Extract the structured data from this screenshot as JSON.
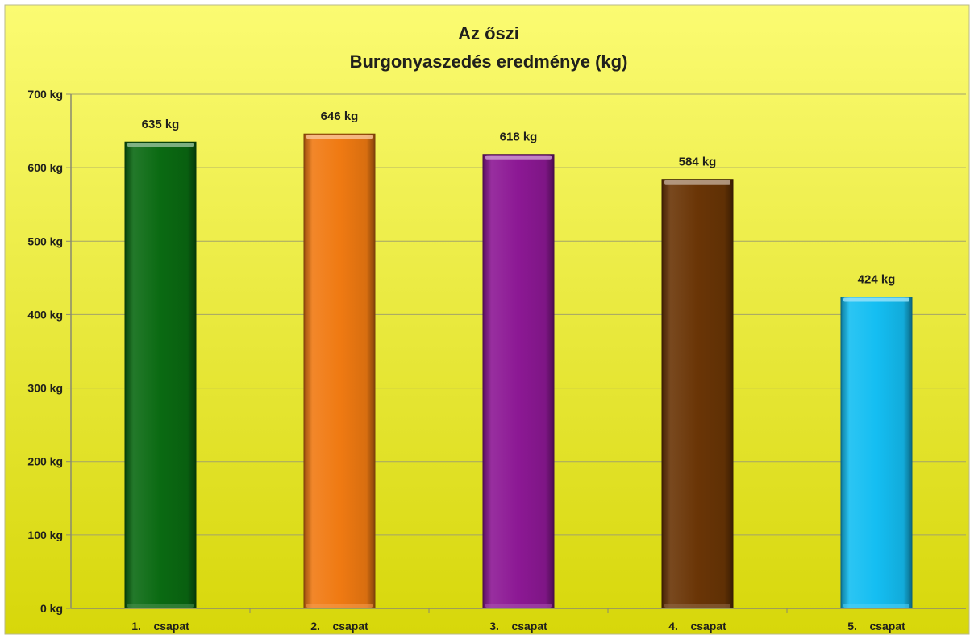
{
  "chart_data": {
    "type": "bar",
    "title_line1": "Az őszi",
    "title_line2": "Burgonyaszedés eredménye (kg)",
    "categories": [
      "1.    csapat",
      "2.    csapat",
      "3.    csapat",
      "4.    csapat",
      "5.    csapat"
    ],
    "values": [
      635,
      646,
      618,
      584,
      424
    ],
    "data_labels": [
      "635 kg",
      "646 kg",
      "618 kg",
      "584 kg",
      "424 kg"
    ],
    "y_ticks": [
      "0 kg",
      "100 kg",
      "200 kg",
      "300 kg",
      "400 kg",
      "500 kg",
      "600 kg",
      "700 kg"
    ],
    "ylim": [
      0,
      700
    ],
    "grid": true,
    "legend": "none",
    "colors": [
      "#0a6a12",
      "#f07a12",
      "#8c1894",
      "#6a3506",
      "#14bef2"
    ],
    "background_colors": [
      "#fbfb72",
      "#d7d70a"
    ],
    "title_color": "#20201c"
  }
}
